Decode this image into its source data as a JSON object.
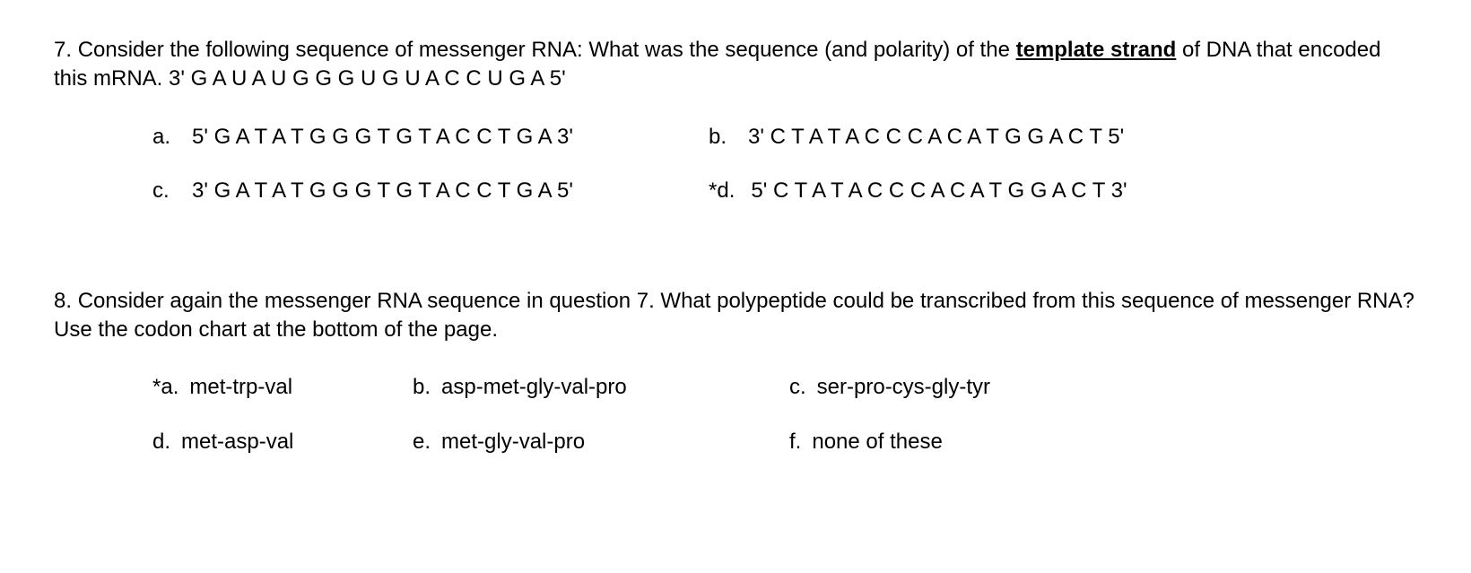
{
  "q7": {
    "number": "7.",
    "text_part1": "Consider the following sequence of messenger RNA:  What was the sequence (and polarity) of the ",
    "template_strand": "template strand",
    "text_part2": " of DNA that  encoded this mRNA.   3'  G A U A U G G G U G U A C C U G A  5'",
    "options": {
      "a": {
        "letter": "a.",
        "text": "5'   G A T A T G G G T G T A C C T G A  3'"
      },
      "b": {
        "letter": "b.",
        "text": "3'  C T A T A C C C A C A T G G A C T  5'"
      },
      "c": {
        "letter": "c.",
        "text": "3'   G A T A T G G G T G T A C C T G A  5'"
      },
      "d": {
        "letter": "*d.",
        "text": "5'  C T A T A C C C A C A T G G A C T 3'"
      }
    }
  },
  "q8": {
    "number": "8.",
    "text": "Consider again the messenger RNA sequence in question 7.  What polypeptide could be transcribed from this sequence of messenger RNA?  Use the codon chart at the bottom of the page.",
    "options": {
      "a": {
        "letter": "*a.",
        "text": "met-trp-val"
      },
      "b": {
        "letter": "b.",
        "text": "asp-met-gly-val-pro"
      },
      "c": {
        "letter": "c.",
        "text": "ser-pro-cys-gly-tyr"
      },
      "d": {
        "letter": "d.",
        "text": "met-asp-val"
      },
      "e": {
        "letter": "e.",
        "text": "met-gly-val-pro"
      },
      "f": {
        "letter": "f.",
        "text": "none of these"
      }
    }
  }
}
